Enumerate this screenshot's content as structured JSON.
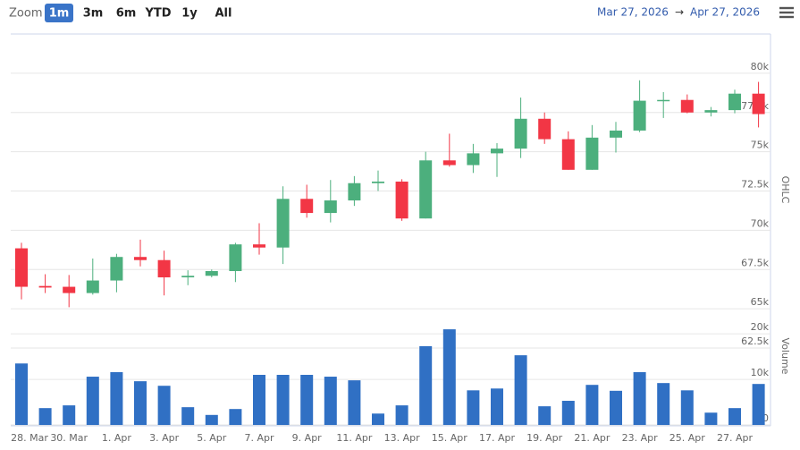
{
  "range_selector": {
    "label": "Zoom",
    "buttons": [
      "1m",
      "3m",
      "6m",
      "YTD",
      "1y",
      "All"
    ],
    "selected": 0
  },
  "date_range": {
    "from": "Mar 27, 2026",
    "separator": "→",
    "to": "Apr 27, 2026"
  },
  "chart_data": [
    {
      "type": "candlestick",
      "axis_title": "OHLC",
      "up_color": "#4caf7d",
      "down_color": "#f23645",
      "grid": true,
      "categories": [
        "28. Mar",
        null,
        "30. Mar",
        null,
        "1. Apr",
        null,
        "3. Apr",
        null,
        "5. Apr",
        null,
        "7. Apr",
        null,
        "9. Apr",
        null,
        "11. Apr",
        null,
        "13. Apr",
        null,
        "15. Apr",
        null,
        "17. Apr",
        null,
        "19. Apr",
        null,
        "21. Apr",
        null,
        "23. Apr",
        null,
        "25. Apr",
        null,
        "27. Apr",
        null
      ],
      "open": [
        68850,
        66450,
        66400,
        66000,
        66800,
        68300,
        68100,
        67000,
        67100,
        67400,
        69100,
        68900,
        72000,
        71100,
        71900,
        73000,
        73100,
        70750,
        74450,
        74150,
        74900,
        75200,
        77100,
        75800,
        73850,
        75900,
        76350,
        78250,
        78300,
        77500,
        77650,
        78700
      ],
      "high": [
        69200,
        67200,
        67150,
        68200,
        68500,
        69400,
        68700,
        67450,
        67500,
        69200,
        70450,
        72800,
        72900,
        73200,
        73450,
        73800,
        73250,
        75000,
        76150,
        75500,
        75550,
        78450,
        77500,
        76300,
        76700,
        76900,
        79550,
        78800,
        78650,
        77850,
        78950,
        79450
      ],
      "low": [
        65600,
        66000,
        65100,
        65900,
        66050,
        67700,
        65850,
        66500,
        67000,
        66700,
        68450,
        67850,
        70800,
        70500,
        71550,
        72500,
        70600,
        70750,
        74050,
        73650,
        73400,
        74600,
        75500,
        73850,
        73850,
        74950,
        76250,
        77150,
        77450,
        77250,
        77450,
        76550
      ],
      "close": [
        66400,
        66350,
        66000,
        66800,
        68300,
        68100,
        67000,
        67100,
        67400,
        69100,
        68900,
        72000,
        71100,
        71900,
        73000,
        73100,
        70750,
        74450,
        74150,
        74900,
        75200,
        77100,
        75800,
        73850,
        75900,
        76350,
        78250,
        78300,
        77500,
        77650,
        78700,
        77400
      ],
      "ylim": [
        62500,
        82500
      ],
      "yticks": [
        {
          "value": 62500,
          "label": "62.5k"
        },
        {
          "value": 65000,
          "label": "65k"
        },
        {
          "value": 67500,
          "label": "67.5k"
        },
        {
          "value": 70000,
          "label": "70k"
        },
        {
          "value": 72500,
          "label": "72.5k"
        },
        {
          "value": 75000,
          "label": "75k"
        },
        {
          "value": 77500,
          "label": "77.5k"
        },
        {
          "value": 80000,
          "label": "80k"
        }
      ]
    },
    {
      "type": "bar",
      "axis_title": "Volume",
      "color": "#3070c4",
      "grid": true,
      "values": [
        13500,
        3700,
        4300,
        10600,
        11600,
        9600,
        8600,
        3900,
        2200,
        3500,
        11000,
        11000,
        11000,
        10600,
        9800,
        2500,
        4300,
        17300,
        21000,
        7600,
        8000,
        15300,
        4100,
        5300,
        8800,
        7500,
        11600,
        9200,
        7600,
        2700,
        3700,
        9000
      ],
      "ylim": [
        0,
        22000
      ],
      "yticks": [
        0,
        {
          "value": 10000,
          "label": "10k"
        },
        {
          "value": 20000,
          "label": "20k"
        }
      ]
    }
  ]
}
